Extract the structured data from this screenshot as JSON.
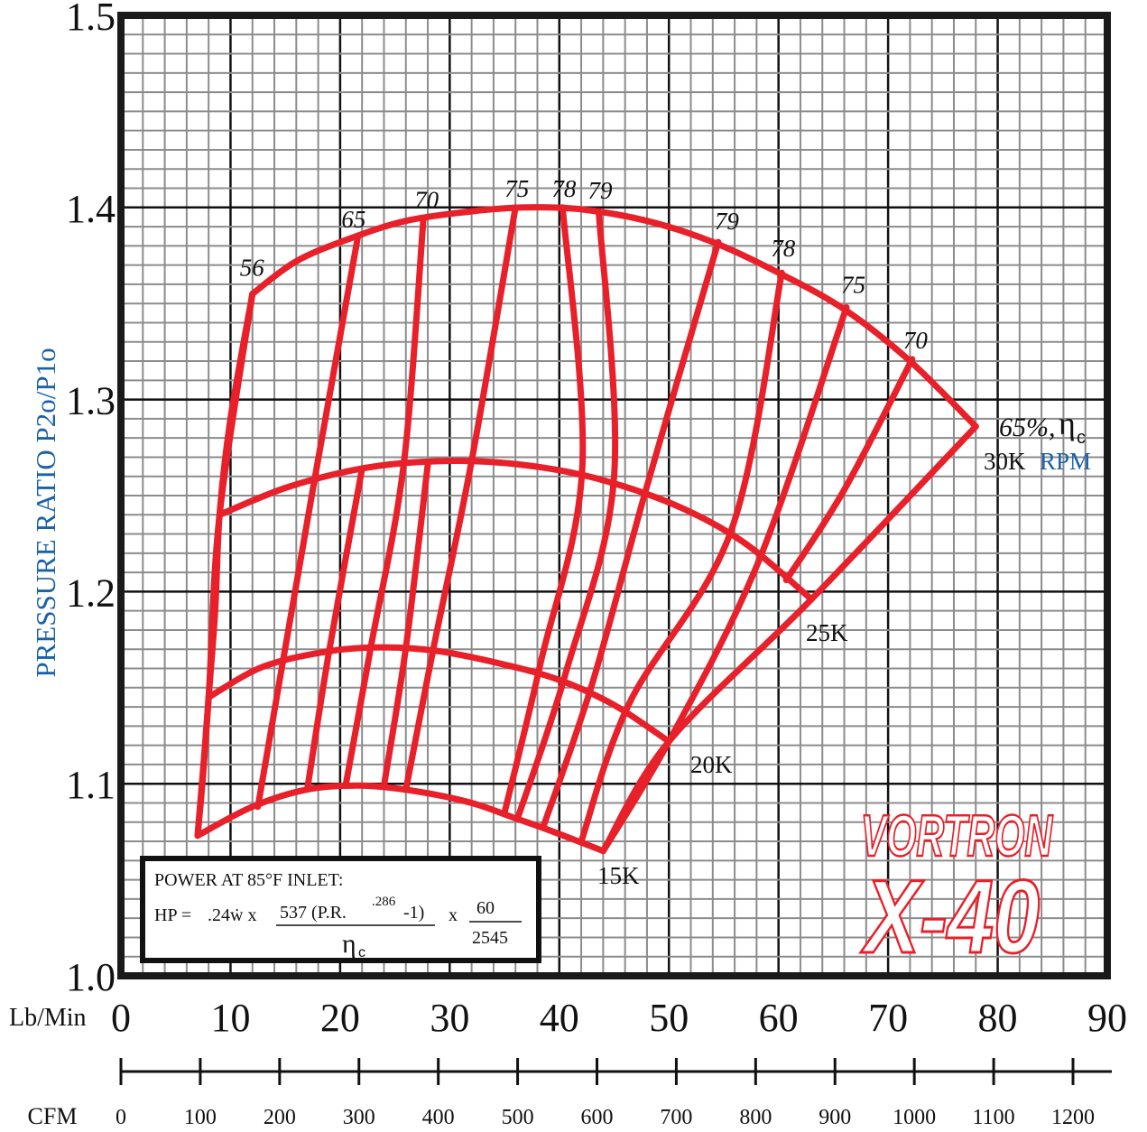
{
  "colors": {
    "accent": "#1a62a8",
    "map_red": "#e8202a",
    "grid": "#8c8c8c",
    "major_grid": "#111111",
    "frame": "#1a1a1a"
  },
  "chart_data": {
    "type": "line",
    "title": "",
    "ylabel": "PRESSURE RATIO P2o/P1o",
    "xlabel_primary": "Lb/Min",
    "xlabel_secondary": "CFM",
    "xlim": [
      0,
      90
    ],
    "ylim": [
      1.0,
      1.5
    ],
    "x_ticks": [
      "0",
      "10",
      "20",
      "30",
      "40",
      "50",
      "60",
      "70",
      "80",
      "90"
    ],
    "y_ticks": [
      "1.0",
      "1.1",
      "1.2",
      "1.3",
      "1.4",
      "1.5"
    ],
    "cfm_ticks": [
      "0",
      "100",
      "200",
      "300",
      "400",
      "500",
      "600",
      "700",
      "800",
      "900",
      "1000",
      "1100",
      "1200"
    ],
    "grid": true,
    "speed_lines": [
      {
        "label": "15K",
        "points": [
          [
            7,
            1.073
          ],
          [
            12,
            1.088
          ],
          [
            17,
            1.097
          ],
          [
            22,
            1.099
          ],
          [
            27,
            1.096
          ],
          [
            32,
            1.09
          ],
          [
            36,
            1.082
          ],
          [
            39,
            1.076
          ],
          [
            44,
            1.065
          ]
        ]
      },
      {
        "label": "20K",
        "points": [
          [
            8,
            1.145
          ],
          [
            13,
            1.161
          ],
          [
            19,
            1.169
          ],
          [
            24,
            1.171
          ],
          [
            29,
            1.169
          ],
          [
            35,
            1.162
          ],
          [
            40,
            1.154
          ],
          [
            45,
            1.141
          ],
          [
            50,
            1.122
          ]
        ]
      },
      {
        "label": "25K",
        "points": [
          [
            9,
            1.24
          ],
          [
            15,
            1.254
          ],
          [
            21,
            1.263
          ],
          [
            26,
            1.267
          ],
          [
            32,
            1.268
          ],
          [
            38,
            1.265
          ],
          [
            44,
            1.258
          ],
          [
            51,
            1.244
          ],
          [
            57,
            1.225
          ],
          [
            63,
            1.196
          ]
        ]
      },
      {
        "label": "30K RPM",
        "points": [
          [
            12,
            1.355
          ],
          [
            16,
            1.372
          ],
          [
            21,
            1.384
          ],
          [
            26,
            1.393
          ],
          [
            32,
            1.398
          ],
          [
            37,
            1.4
          ],
          [
            42,
            1.399
          ],
          [
            48,
            1.393
          ],
          [
            54,
            1.382
          ],
          [
            60,
            1.366
          ],
          [
            66,
            1.347
          ],
          [
            72,
            1.32
          ],
          [
            78,
            1.286
          ]
        ]
      }
    ],
    "surge_line": [
      [
        7,
        1.073
      ],
      [
        7.5,
        1.105
      ],
      [
        8,
        1.145
      ],
      [
        8.6,
        1.19
      ],
      [
        9,
        1.24
      ],
      [
        10,
        1.29
      ],
      [
        12,
        1.355
      ]
    ],
    "choke_line": [
      [
        44,
        1.065
      ],
      [
        50,
        1.122
      ],
      [
        63,
        1.196
      ],
      [
        78,
        1.286
      ]
    ],
    "efficiency_lines": [
      {
        "label": "56",
        "points": [
          [
            7,
            1.073
          ],
          [
            8,
            1.145
          ],
          [
            9,
            1.24
          ],
          [
            12,
            1.355
          ]
        ]
      },
      {
        "label": "65",
        "points": [
          [
            12.5,
            1.088
          ],
          [
            14.7,
            1.161
          ],
          [
            17.6,
            1.256
          ],
          [
            21.6,
            1.384
          ]
        ]
      },
      {
        "label": "",
        "points": [
          [
            17,
            1.097
          ],
          [
            19,
            1.169
          ],
          [
            22,
            1.264
          ]
        ]
      },
      {
        "label": "70",
        "points": [
          [
            20.5,
            1.099
          ],
          [
            22.8,
            1.171
          ],
          [
            25.8,
            1.266
          ],
          [
            27.6,
            1.394
          ]
        ]
      },
      {
        "label": "",
        "points": [
          [
            24,
            1.099
          ],
          [
            26,
            1.171
          ],
          [
            28,
            1.266
          ]
        ]
      },
      {
        "label": "75",
        "points": [
          [
            26,
            1.097
          ],
          [
            28.5,
            1.17
          ],
          [
            32,
            1.268
          ],
          [
            36,
            1.4
          ]
        ]
      },
      {
        "label": "78",
        "points": [
          [
            35,
            1.085
          ],
          [
            38.3,
            1.163
          ],
          [
            42.1,
            1.265
          ],
          [
            40.3,
            1.4
          ]
        ]
      },
      {
        "label": "79",
        "points": [
          [
            36.2,
            1.082
          ],
          [
            40.6,
            1.158
          ],
          [
            45,
            1.26
          ],
          [
            43.6,
            1.398
          ]
        ]
      },
      {
        "label": "79",
        "points": [
          [
            38.5,
            1.077
          ],
          [
            43,
            1.152
          ],
          [
            48,
            1.255
          ],
          [
            54.5,
            1.382
          ]
        ]
      },
      {
        "label": "78",
        "points": [
          [
            42,
            1.07
          ],
          [
            46.4,
            1.142
          ],
          [
            55.7,
            1.232
          ],
          [
            60.3,
            1.366
          ]
        ]
      },
      {
        "label": "75",
        "points": [
          [
            44,
            1.065
          ],
          [
            50,
            1.122
          ],
          [
            58.2,
            1.216
          ],
          [
            66.2,
            1.348
          ]
        ]
      },
      {
        "label": "70",
        "points": [
          [
            60.7,
            1.206
          ],
          [
            66,
            1.253
          ],
          [
            72.2,
            1.321
          ]
        ]
      }
    ],
    "annotations": [
      "65%,",
      "η",
      "c",
      "30K",
      "RPM",
      "25K",
      "20K",
      "15K"
    ],
    "power_box": {
      "heading": "POWER AT 85°F INLET:",
      "lhs": "HP =",
      "term1": ".24ẇ x",
      "numerator": "537 (P.R.",
      "exponent": ".286",
      "numerator_tail": "-1)",
      "eta": "η",
      "eta_sub": "c",
      "times": "x",
      "frac_num": "60",
      "frac_den": "2545"
    },
    "logo": {
      "line1": "VORTRON",
      "line2": "X-40"
    }
  }
}
